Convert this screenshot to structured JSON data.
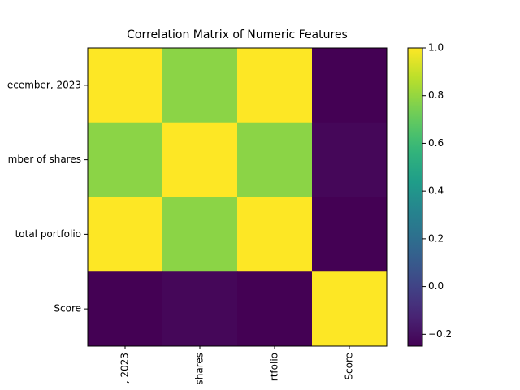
{
  "chart_data": {
    "type": "heatmap",
    "title": "Correlation Matrix of Numeric Features",
    "x_categories": [
      ", 2023",
      "shares",
      "rtfolio",
      "Score"
    ],
    "y_categories": [
      "ecember, 2023",
      "mber of shares",
      "total portfolio",
      "Score"
    ],
    "values": [
      [
        1,
        0.78,
        1,
        -0.25
      ],
      [
        0.78,
        1,
        0.78,
        -0.23
      ],
      [
        1,
        0.78,
        1,
        -0.25
      ],
      [
        -0.25,
        -0.23,
        -0.25,
        1
      ]
    ],
    "colormap": "viridis",
    "clim": [
      -0.25,
      1
    ],
    "cticks": [
      {
        "value": -0.2,
        "label": "−0.2"
      },
      {
        "value": 0,
        "label": "0.0"
      },
      0.2,
      0.4,
      0.6,
      0.8,
      {
        "value": 1,
        "label": "1.0"
      }
    ]
  }
}
